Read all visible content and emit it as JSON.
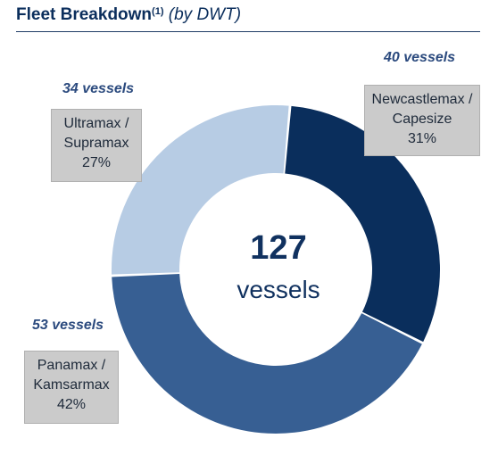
{
  "title": {
    "main": "Fleet Breakdown",
    "footnote": "(1)",
    "subtitle": "(by DWT)"
  },
  "chart_data": {
    "type": "pie",
    "title": "Fleet Breakdown(1) (by DWT)",
    "center_value": "127",
    "center_label": "vessels",
    "slices": [
      {
        "line1": "Newcastlemax /",
        "line2": "Capesize",
        "percent_label": "31%",
        "value": 31,
        "vessels_label": "40 vessels",
        "color": "#0a2e5c"
      },
      {
        "line1": "Panamax /",
        "line2": "Kamsarmax",
        "percent_label": "42%",
        "value": 42,
        "vessels_label": "53 vessels",
        "color": "#375f93"
      },
      {
        "line1": "Ultramax /",
        "line2": "Supramax",
        "percent_label": "27%",
        "value": 27,
        "vessels_label": "34 vessels",
        "color": "#b7cce4"
      }
    ]
  }
}
